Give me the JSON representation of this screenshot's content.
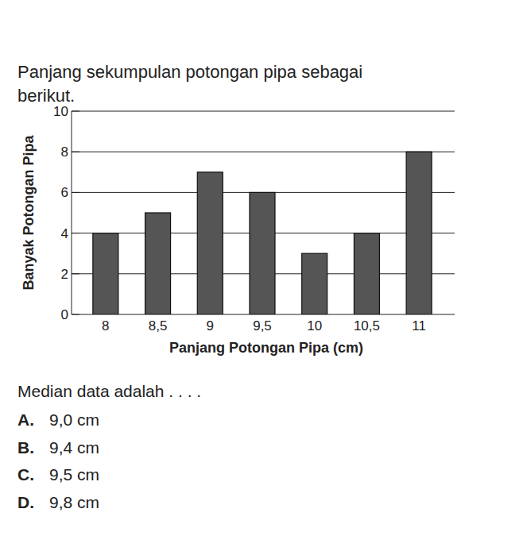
{
  "intro": [
    "Panjang sekumpulan potongan pipa sebagai",
    "berikut."
  ],
  "chart_data": {
    "type": "bar",
    "x_label": "Panjang Potongan Pipa (cm)",
    "y_label": "Banyak Potongan Pipa",
    "categories": [
      "8",
      "8,5",
      "9",
      "9,5",
      "10",
      "10,5",
      "11"
    ],
    "values": [
      4,
      5,
      7,
      6,
      3,
      4,
      8
    ],
    "color": "#555555",
    "ylim": [
      0,
      10
    ],
    "yticks": [
      0,
      2,
      4,
      6,
      8,
      10
    ],
    "grid": true
  },
  "question": "Median data adalah . . . .",
  "options": [
    {
      "letter": "A.",
      "text": "9,0 cm"
    },
    {
      "letter": "B.",
      "text": "9,4 cm"
    },
    {
      "letter": "C.",
      "text": "9,5 cm"
    },
    {
      "letter": "D.",
      "text": "9,8 cm"
    }
  ]
}
